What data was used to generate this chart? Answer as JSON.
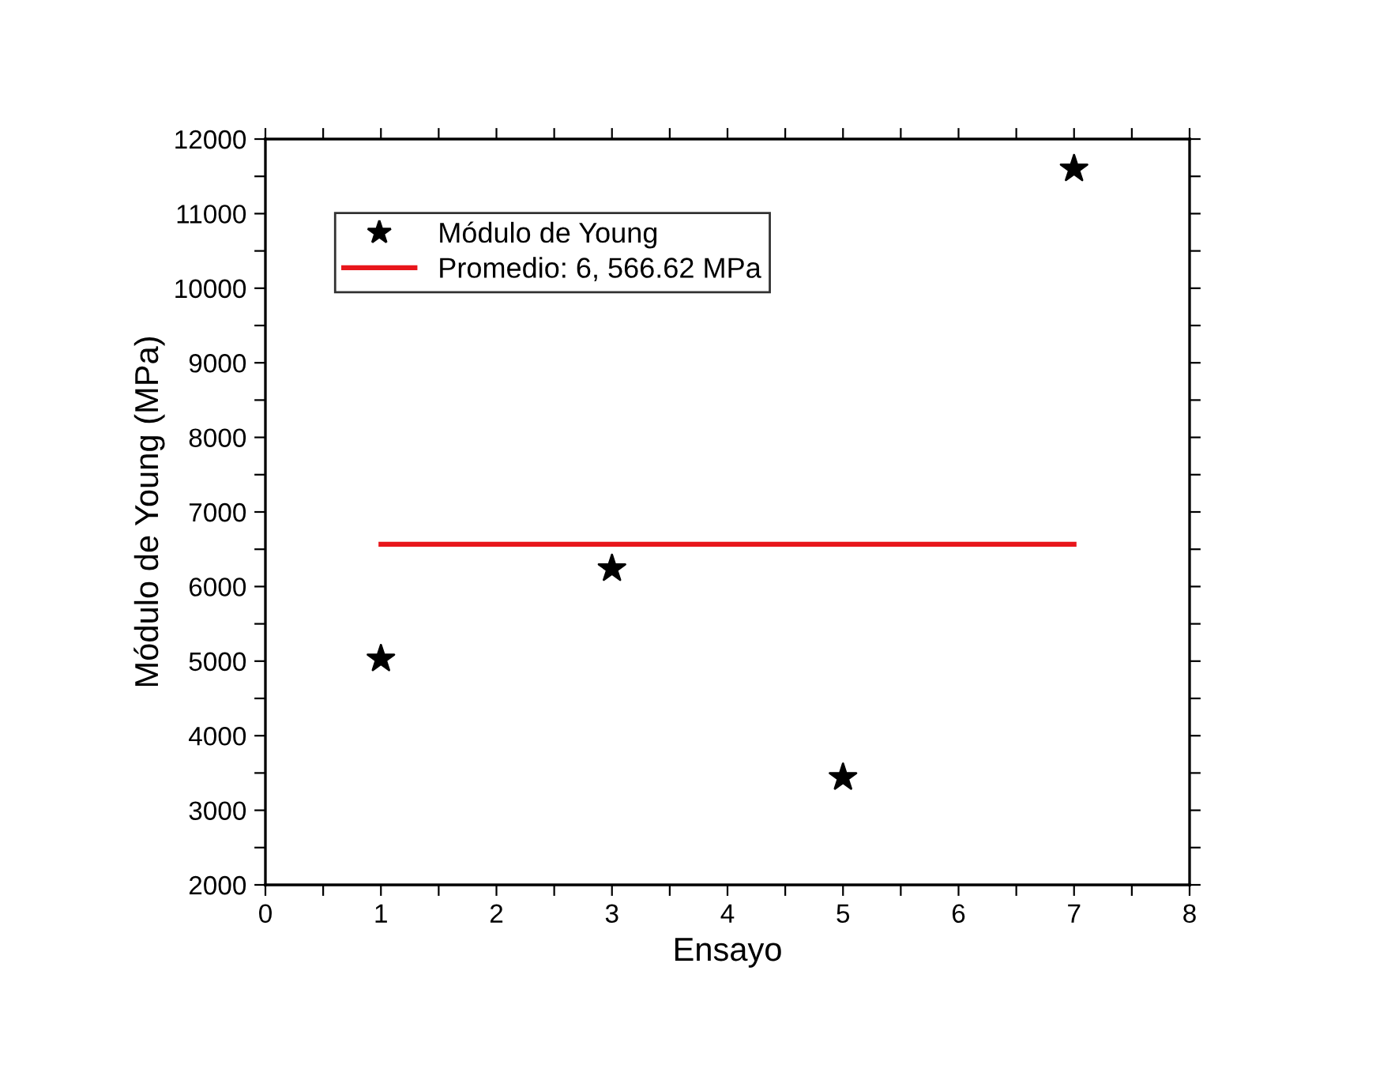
{
  "chart_data": {
    "type": "scatter",
    "xlabel": "Ensayo",
    "ylabel": "Módulo de Young (MPa)",
    "series": [
      {
        "name": "Módulo de Young",
        "color": "#000000",
        "marker": "star",
        "x": [
          1,
          3,
          5,
          7
        ],
        "values": [
          5030,
          6240,
          3440,
          11600
        ]
      },
      {
        "name": "Promedio: 6, 566.62 MPa",
        "type": "line",
        "color": "#e8161b",
        "line_style": "solid",
        "x": [
          1,
          7
        ],
        "values": [
          6566.62,
          6566.62
        ]
      }
    ],
    "xlim": [
      0,
      8
    ],
    "xticks": [
      0,
      {
        "value": 0.5,
        "label": null
      },
      1,
      {
        "value": 1.5,
        "label": null
      },
      2,
      {
        "value": 2.5,
        "label": null
      },
      3,
      {
        "value": 3.5,
        "label": null
      },
      4,
      {
        "value": 4.5,
        "label": null
      },
      5,
      {
        "value": 5.5,
        "label": null
      },
      6,
      {
        "value": 6.5,
        "label": null
      },
      7,
      {
        "value": 7.5,
        "label": null
      },
      8
    ],
    "ylim": [
      2000,
      12000
    ],
    "yticks": [
      2000,
      {
        "value": 2500,
        "label": null
      },
      3000,
      {
        "value": 3500,
        "label": null
      },
      4000,
      {
        "value": 4500,
        "label": null
      },
      5000,
      {
        "value": 5500,
        "label": null
      },
      6000,
      {
        "value": 6500,
        "label": null
      },
      7000,
      {
        "value": 7500,
        "label": null
      },
      8000,
      {
        "value": 8500,
        "label": null
      },
      9000,
      {
        "value": 9500,
        "label": null
      },
      10000,
      {
        "value": 10500,
        "label": null
      },
      11000,
      {
        "value": 11500,
        "label": null
      },
      12000
    ],
    "grid": false,
    "legend": "top left"
  }
}
